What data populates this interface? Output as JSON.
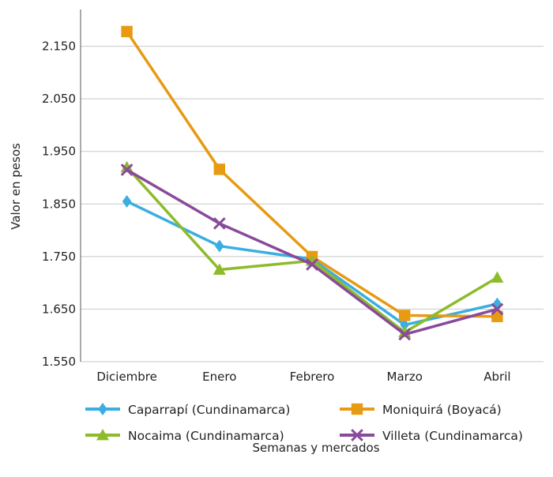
{
  "chart_data": {
    "type": "line",
    "xlabel": "Semanas y mercados",
    "ylabel": "Valor en pesos",
    "categories": [
      "Diciembre",
      "Enero",
      "Febrero",
      "Marzo",
      "Abril"
    ],
    "ylim": [
      1550,
      2220
    ],
    "yticks": [
      1550,
      1650,
      1750,
      1850,
      1950,
      2050,
      2150
    ],
    "ytick_labels": [
      "1.550",
      "1.650",
      "1.750",
      "1.850",
      "1.950",
      "2.050",
      "2.150"
    ],
    "grid": true,
    "legend_position": "bottom",
    "series": [
      {
        "name": "Caparrapí (Cundinamarca)",
        "color": "#3aaee0",
        "marker": "diamond",
        "values": [
          1855,
          1770,
          1745,
          1620,
          1660
        ]
      },
      {
        "name": "Moniquirá (Boyacá)",
        "color": "#e79a12",
        "marker": "square",
        "values": [
          2178,
          1916,
          1750,
          1638,
          1636
        ]
      },
      {
        "name": "Nocaima (Cundinamarca)",
        "color": "#8dbb2a",
        "marker": "triangle",
        "values": [
          1920,
          1725,
          1742,
          1606,
          1710
        ]
      },
      {
        "name": "Villeta (Cundinamarca)",
        "color": "#8a4a9a",
        "marker": "x",
        "values": [
          1915,
          1813,
          1735,
          1602,
          1650
        ]
      }
    ]
  }
}
